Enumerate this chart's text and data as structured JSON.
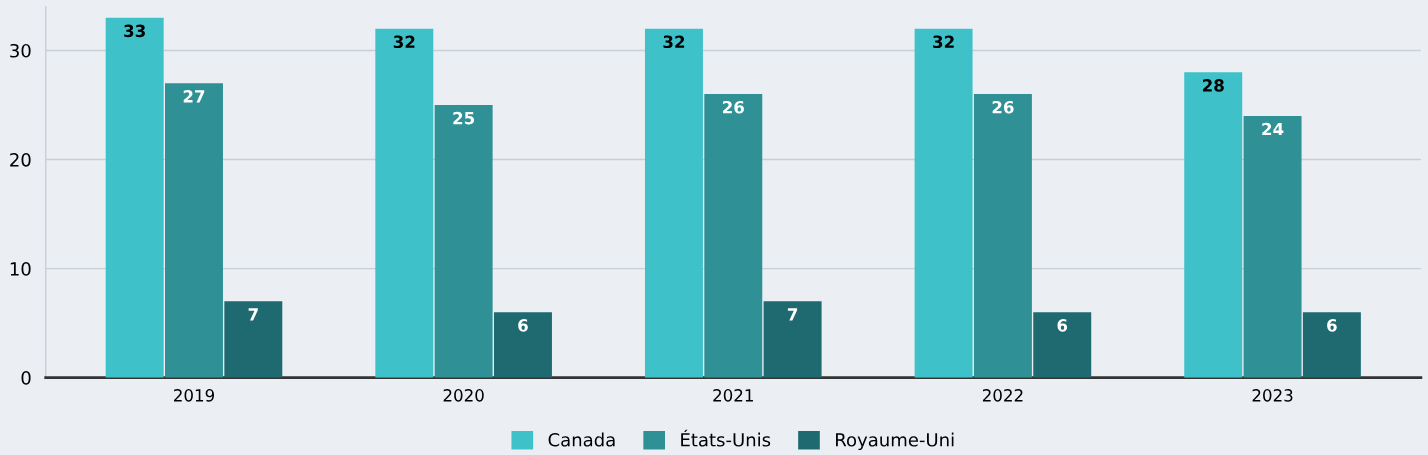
{
  "chart_data": {
    "type": "bar",
    "categories": [
      "2019",
      "2020",
      "2021",
      "2022",
      "2023"
    ],
    "series": [
      {
        "name": "Canada",
        "color": "#3fc1c9",
        "values": [
          33,
          32,
          32,
          32,
          28
        ]
      },
      {
        "name": "États-Unis",
        "color": "#2f9196",
        "values": [
          27,
          25,
          26,
          26,
          24
        ]
      },
      {
        "name": "Royaume-Uni",
        "color": "#1e6a70",
        "values": [
          7,
          6,
          7,
          6,
          6
        ]
      }
    ],
    "ylim": [
      0,
      34
    ],
    "yticks": [
      0,
      10,
      20,
      30
    ],
    "grid": "y",
    "legend": "bottom",
    "data_labels": true
  }
}
